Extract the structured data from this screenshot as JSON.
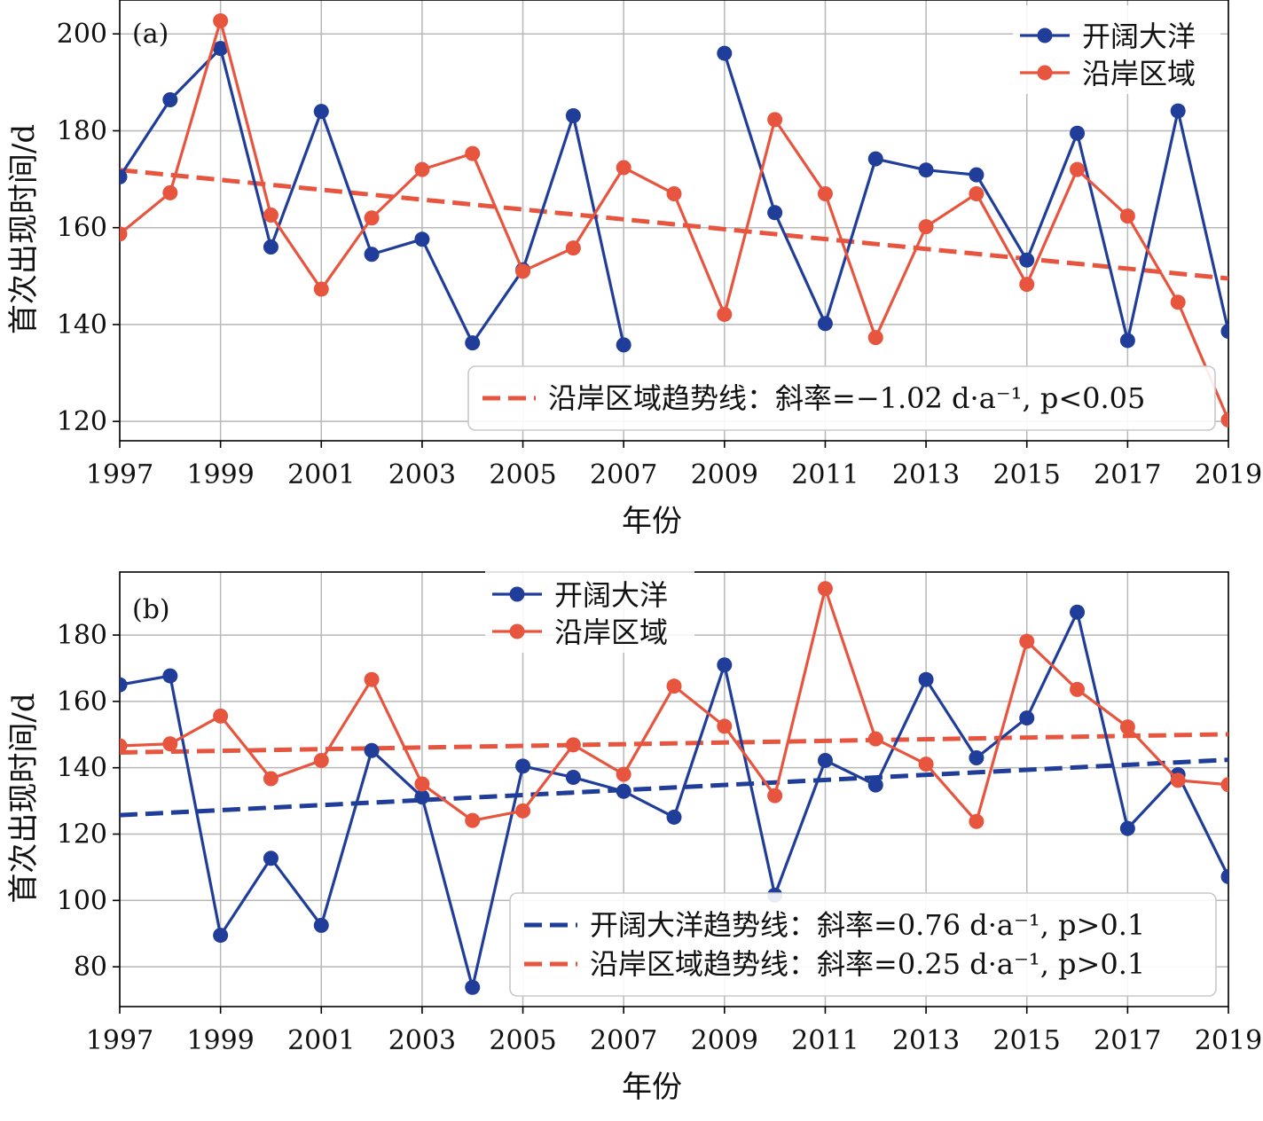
{
  "chart_data": [
    {
      "panel": "(a)",
      "type": "line",
      "xlabel": "年份",
      "ylabel": "首次出现时间/d",
      "xlim": [
        1997,
        2019
      ],
      "ylim": [
        116,
        207
      ],
      "x_ticks": [
        1997,
        1999,
        2001,
        2003,
        2005,
        2007,
        2009,
        2011,
        2013,
        2015,
        2017,
        2019
      ],
      "y_ticks": [
        120,
        140,
        160,
        180,
        200
      ],
      "grid": true,
      "x": [
        1997,
        1998,
        1999,
        2000,
        2001,
        2002,
        2003,
        2004,
        2005,
        2006,
        2007,
        2008,
        2009,
        2010,
        2011,
        2012,
        2013,
        2014,
        2015,
        2016,
        2017,
        2018,
        2019
      ],
      "series": [
        {
          "name": "开阔大洋",
          "color": "#1f3d99",
          "values": [
            170.5,
            186.4,
            197,
            156,
            184,
            154.5,
            157.6,
            136.2,
            151.3,
            183.1,
            135.8,
            null,
            196,
            163.1,
            140.2,
            174.2,
            171.9,
            170.9,
            153.3,
            179.5,
            136.7,
            184.1,
            138.6
          ]
        },
        {
          "name": "沿岸区域",
          "color": "#e8553f",
          "values": [
            158.7,
            167.2,
            202.7,
            162.6,
            147.3,
            162,
            172,
            175.3,
            151,
            155.8,
            172.4,
            167,
            142.1,
            182.3,
            167,
            137.3,
            160.2,
            167,
            148.3,
            172,
            162.4,
            144.6,
            120.3
          ]
        }
      ],
      "legend": {
        "placement": "top-right",
        "entries": [
          "开阔大洋",
          "沿岸区域"
        ]
      },
      "trends": [
        {
          "series": "沿岸区域",
          "color": "#e8553f",
          "label": "沿岸区域趋势线：斜率=−1.02 d·a⁻¹, p<0.05",
          "y_start": 171.9,
          "y_end": 149.5
        }
      ],
      "trend_legend_placement": "bottom-right"
    },
    {
      "panel": "(b)",
      "type": "line",
      "xlabel": "年份",
      "ylabel": "首次出现时间/d",
      "xlim": [
        1997,
        2019
      ],
      "ylim": [
        68,
        199
      ],
      "x_ticks": [
        1997,
        1999,
        2001,
        2003,
        2005,
        2007,
        2009,
        2011,
        2013,
        2015,
        2017,
        2019
      ],
      "y_ticks": [
        80,
        100,
        120,
        140,
        160,
        180
      ],
      "grid": true,
      "x": [
        1997,
        1998,
        1999,
        2000,
        2001,
        2002,
        2003,
        2004,
        2005,
        2006,
        2007,
        2008,
        2009,
        2010,
        2011,
        2012,
        2013,
        2014,
        2015,
        2016,
        2017,
        2018,
        2019
      ],
      "series": [
        {
          "name": "开阔大洋",
          "color": "#1f3d99",
          "values": [
            165,
            167.7,
            89.5,
            112.7,
            92.5,
            145.2,
            131.2,
            73.8,
            140.5,
            137.1,
            132.9,
            125.1,
            171,
            101.6,
            142.2,
            134.8,
            166.6,
            143,
            155,
            186.9,
            121.7,
            137.9,
            107.2
          ]
        },
        {
          "name": "沿岸区域",
          "color": "#e8553f",
          "values": [
            146.6,
            147.2,
            155.6,
            136.7,
            142.2,
            166.6,
            135.1,
            124.1,
            127,
            146.9,
            138,
            164.6,
            152.5,
            131.6,
            194,
            148.7,
            141.1,
            123.8,
            178.1,
            163.6,
            152.3,
            136.2,
            134.9
          ]
        }
      ],
      "legend": {
        "placement": "top-center",
        "entries": [
          "开阔大洋",
          "沿岸区域"
        ]
      },
      "trends": [
        {
          "series": "开阔大洋",
          "color": "#1f3d99",
          "label": "开阔大洋趋势线：斜率=0.76 d·a⁻¹, p>0.1",
          "y_start": 125.7,
          "y_end": 142.4
        },
        {
          "series": "沿岸区域",
          "color": "#e8553f",
          "label": "沿岸区域趋势线：斜率=0.25 d·a⁻¹, p>0.1",
          "y_start": 144.6,
          "y_end": 150.1
        }
      ],
      "trend_legend_placement": "bottom-right"
    }
  ]
}
